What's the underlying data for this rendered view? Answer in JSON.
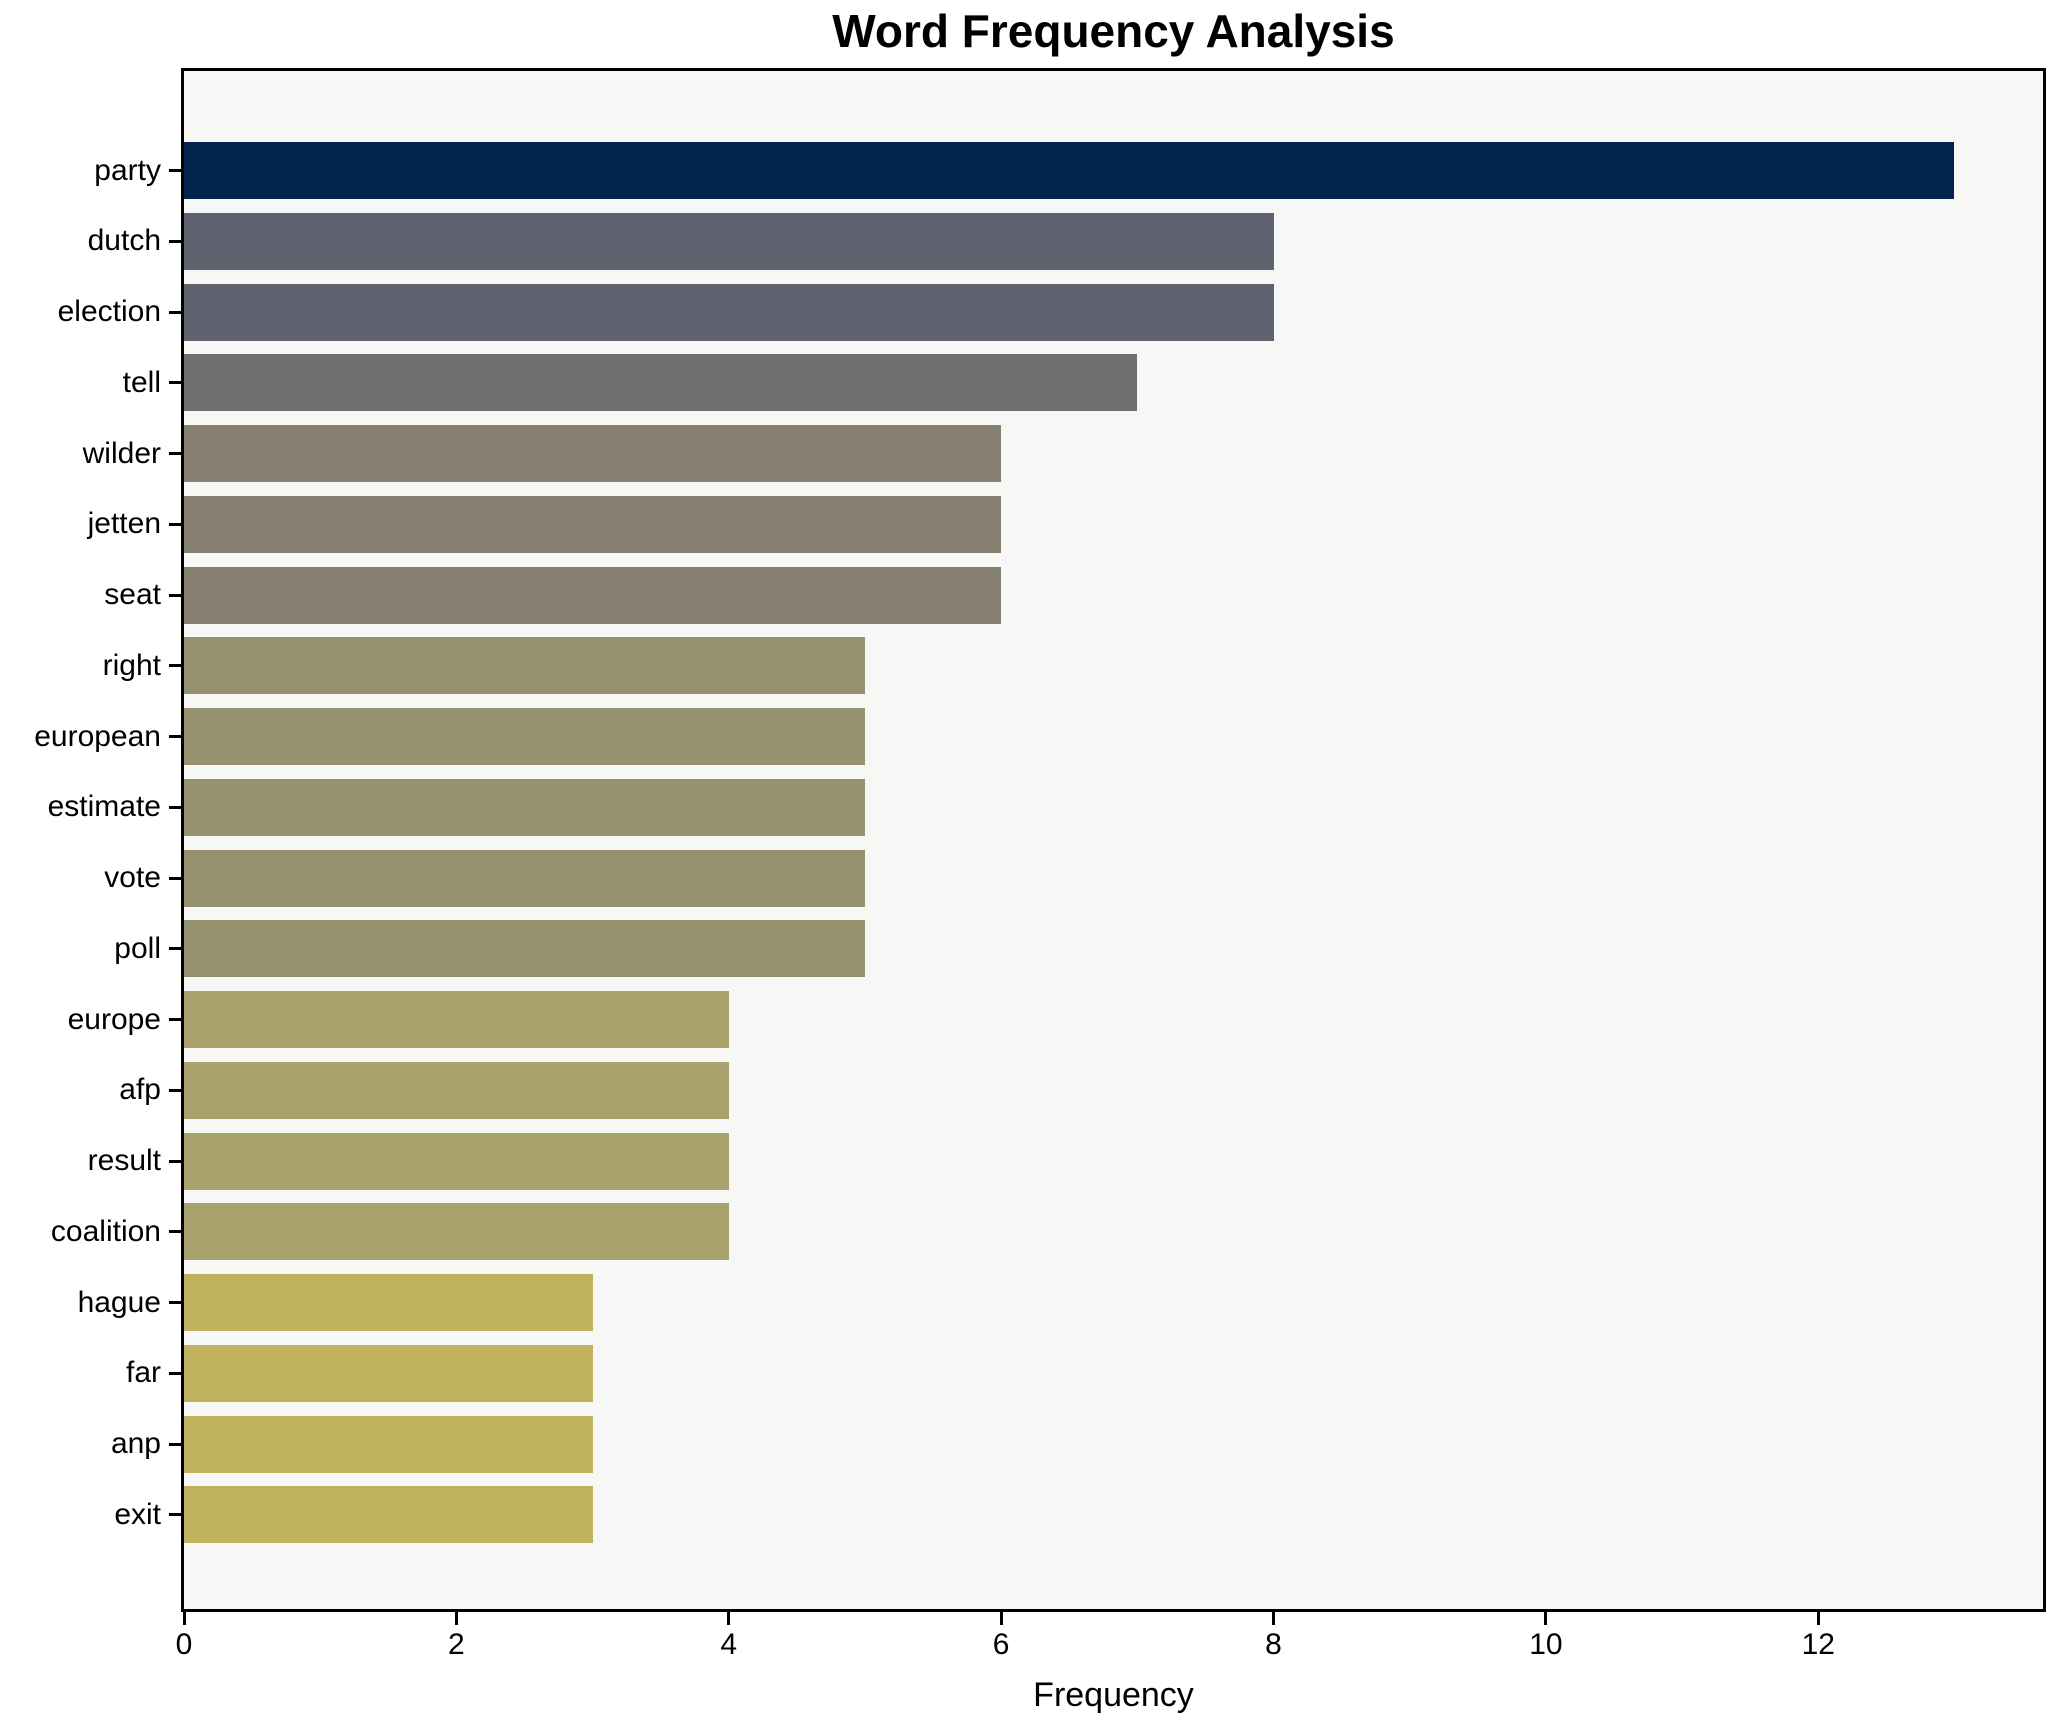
{
  "title": "Word Frequency Analysis",
  "chart_data": {
    "type": "bar",
    "orientation": "horizontal",
    "title": "Word Frequency Analysis",
    "xlabel": "Frequency",
    "ylabel": "",
    "categories": [
      "party",
      "dutch",
      "election",
      "tell",
      "wilder",
      "jetten",
      "seat",
      "right",
      "european",
      "estimate",
      "vote",
      "poll",
      "europe",
      "afp",
      "result",
      "coalition",
      "hague",
      "far",
      "anp",
      "exit"
    ],
    "values": [
      13,
      8,
      8,
      7,
      6,
      6,
      6,
      5,
      5,
      5,
      5,
      5,
      4,
      4,
      4,
      4,
      3,
      3,
      3,
      3
    ],
    "bar_colors": [
      "#02234e",
      "#5f6370",
      "#5f6370",
      "#6f706e",
      "#858070",
      "#858070",
      "#858070",
      "#969270",
      "#969270",
      "#969270",
      "#969270",
      "#969270",
      "#aaa26d",
      "#aaa26d",
      "#aaa26d",
      "#aaa26d",
      "#c1b25f",
      "#c1b25f",
      "#c1b25f",
      "#c1b25f"
    ],
    "xlim": [
      0,
      13.65
    ],
    "xticks": [
      0,
      2,
      4,
      6,
      8,
      10,
      12
    ],
    "grid": false,
    "legend": null,
    "colors": {
      "plot_background": "#f7f7f5",
      "figure_background": "#ffffff",
      "spine": "#000000",
      "text": "#000000"
    }
  }
}
